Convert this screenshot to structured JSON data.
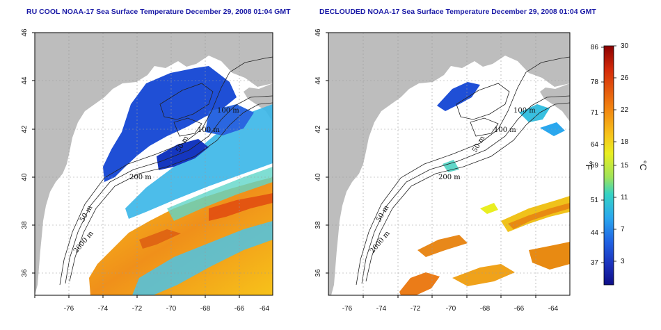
{
  "maps": [
    {
      "title": "RU COOL NOAA-17 Sea Surface Temperature December 29, 2008 01:04 GMT",
      "x_ticks": [
        "-76",
        "-74",
        "-72",
        "-70",
        "-68",
        "-66",
        "-64"
      ],
      "y_ticks": [
        "46",
        "44",
        "42",
        "40",
        "38",
        "36"
      ],
      "contour_labels": [
        "100 m",
        "100 m",
        "50 m",
        "200 m",
        "50 m",
        "2000 m"
      ]
    },
    {
      "title": "DECLOUDED NOAA-17 Sea Surface Temperature December 29, 2008 01:04 GMT",
      "x_ticks": [
        "-76",
        "-74",
        "-72",
        "-70",
        "-68",
        "-66",
        "-64"
      ],
      "y_ticks": [
        "46",
        "44",
        "42",
        "40",
        "38",
        "36"
      ],
      "contour_labels": [
        "100 m",
        "100 m",
        "50 m",
        "200 m",
        "50 m",
        "2000 m"
      ]
    }
  ],
  "colorbar": {
    "fahrenheit_labels": [
      "86",
      "78",
      "71",
      "64",
      "59",
      "51",
      "44",
      "37"
    ],
    "celsius_labels": [
      "30",
      "26",
      "22",
      "18",
      "15",
      "11",
      "7",
      "3"
    ],
    "unit_f": "°F",
    "unit_c": "°C",
    "colors": [
      "#8b0000",
      "#d42a0a",
      "#f07d10",
      "#f7c21a",
      "#e9ee21",
      "#9fe35a",
      "#36d3c4",
      "#2aa7ee",
      "#2062e3",
      "#1b2fb8",
      "#0e0e87"
    ]
  },
  "colors": {
    "land": "#bdbdbd",
    "ocean_nodata": "#ffffff",
    "title": "#1a1aa6"
  }
}
